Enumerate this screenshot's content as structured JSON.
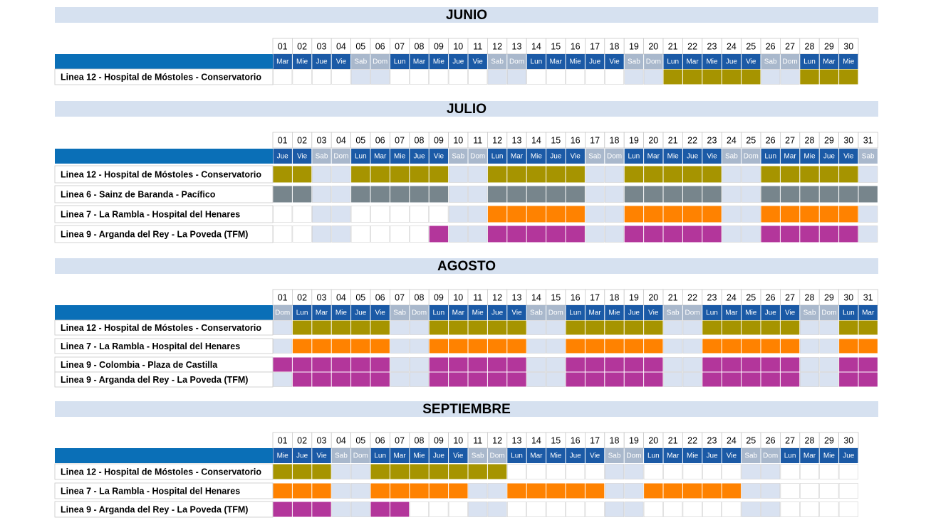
{
  "months": [
    {
      "title": "JUNIO",
      "days": [
        "01",
        "02",
        "03",
        "04",
        "05",
        "06",
        "07",
        "08",
        "09",
        "10",
        "11",
        "12",
        "13",
        "14",
        "15",
        "16",
        "17",
        "18",
        "19",
        "20",
        "21",
        "22",
        "23",
        "24",
        "25",
        "26",
        "27",
        "28",
        "29",
        "30"
      ],
      "weekdays": [
        "Mar",
        "Mie",
        "Jue",
        "Vie",
        "Sab",
        "Dom",
        "Lun",
        "Mar",
        "Mie",
        "Jue",
        "Vie",
        "Sab",
        "Dom",
        "Lun",
        "Mar",
        "Mie",
        "Jue",
        "Vie",
        "Sab",
        "Dom",
        "Lun",
        "Mar",
        "Mie",
        "Jue",
        "Vie",
        "Sab",
        "Dom",
        "Lun",
        "Mar",
        "Mie"
      ],
      "lines": [
        {
          "name": "Linea 12 - Hospital de Móstoles - Conservatorio",
          "color": "#a69400",
          "active": [
            0,
            0,
            0,
            0,
            0,
            0,
            0,
            0,
            0,
            0,
            0,
            0,
            0,
            0,
            0,
            0,
            0,
            0,
            0,
            0,
            1,
            1,
            1,
            1,
            1,
            0,
            0,
            1,
            1,
            1
          ]
        }
      ]
    },
    {
      "title": "JULIO",
      "days": [
        "01",
        "02",
        "03",
        "04",
        "05",
        "06",
        "07",
        "08",
        "09",
        "10",
        "11",
        "12",
        "13",
        "14",
        "15",
        "16",
        "17",
        "18",
        "19",
        "20",
        "21",
        "22",
        "23",
        "24",
        "25",
        "26",
        "27",
        "28",
        "29",
        "30",
        "31"
      ],
      "weekdays": [
        "Jue",
        "Vie",
        "Sab",
        "Dom",
        "Lun",
        "Mar",
        "Mie",
        "Jue",
        "Vie",
        "Sab",
        "Dom",
        "Lun",
        "Mar",
        "Mie",
        "Jue",
        "Vie",
        "Sab",
        "Dom",
        "Lun",
        "Mar",
        "Mie",
        "Jue",
        "Vie",
        "Sab",
        "Dom",
        "Lun",
        "Mar",
        "Mie",
        "Jue",
        "Vie",
        "Sab"
      ],
      "lines": [
        {
          "name": "Linea 12 - Hospital de Móstoles - Conservatorio",
          "color": "#a69400",
          "active": [
            1,
            1,
            0,
            0,
            1,
            1,
            1,
            1,
            1,
            0,
            0,
            1,
            1,
            1,
            1,
            1,
            0,
            0,
            1,
            1,
            1,
            1,
            1,
            0,
            0,
            1,
            1,
            1,
            1,
            1,
            0
          ]
        },
        {
          "name": "Linea 6 - Sainz de Baranda - Pacífico",
          "color": "#77858c",
          "active": [
            1,
            1,
            0,
            0,
            1,
            1,
            1,
            1,
            1,
            0,
            0,
            1,
            1,
            1,
            1,
            1,
            0,
            0,
            1,
            1,
            1,
            1,
            1,
            0,
            0,
            1,
            1,
            1,
            1,
            1,
            1
          ]
        },
        {
          "name": "Linea 7 - La Rambla - Hospital del Henares",
          "color": "#ff8200",
          "active": [
            0,
            0,
            0,
            0,
            0,
            0,
            0,
            0,
            0,
            0,
            0,
            1,
            1,
            1,
            1,
            1,
            0,
            0,
            1,
            1,
            1,
            1,
            1,
            0,
            0,
            1,
            1,
            1,
            1,
            1,
            0
          ]
        },
        {
          "name": "Linea 9 - Arganda del Rey - La Poveda (TFM)",
          "color": "#b3369b",
          "active": [
            0,
            0,
            0,
            0,
            0,
            0,
            0,
            0,
            1,
            0,
            0,
            1,
            1,
            1,
            1,
            1,
            0,
            0,
            1,
            1,
            1,
            1,
            1,
            0,
            0,
            1,
            1,
            1,
            1,
            1,
            0
          ]
        }
      ]
    },
    {
      "title": "AGOSTO",
      "days": [
        "01",
        "02",
        "03",
        "04",
        "05",
        "06",
        "07",
        "08",
        "09",
        "10",
        "11",
        "12",
        "13",
        "14",
        "15",
        "16",
        "17",
        "18",
        "19",
        "20",
        "21",
        "22",
        "23",
        "24",
        "25",
        "26",
        "27",
        "28",
        "29",
        "30",
        "31"
      ],
      "weekdays": [
        "Dom",
        "Lun",
        "Mar",
        "Mie",
        "Jue",
        "Vie",
        "Sab",
        "Dom",
        "Lun",
        "Mar",
        "Mie",
        "Jue",
        "Vie",
        "Sab",
        "Dom",
        "Lun",
        "Mar",
        "Mie",
        "Jue",
        "Vie",
        "Sab",
        "Dom",
        "Lun",
        "Mar",
        "Mie",
        "Jue",
        "Vie",
        "Sab",
        "Dom",
        "Lun",
        "Mar"
      ],
      "lines": [
        {
          "name": "Linea 12 - Hospital de Móstoles - Conservatorio",
          "color": "#a69400",
          "active": [
            0,
            1,
            1,
            1,
            1,
            1,
            0,
            0,
            1,
            1,
            1,
            1,
            1,
            0,
            0,
            1,
            1,
            1,
            1,
            1,
            0,
            0,
            1,
            1,
            1,
            1,
            1,
            0,
            0,
            1,
            1
          ]
        },
        {
          "name": "Linea 7 - La Rambla - Hospital del Henares",
          "color": "#ff8200",
          "active": [
            0,
            1,
            1,
            1,
            1,
            1,
            0,
            0,
            1,
            1,
            1,
            1,
            1,
            0,
            0,
            1,
            1,
            1,
            1,
            1,
            0,
            0,
            1,
            1,
            1,
            1,
            1,
            0,
            0,
            1,
            1
          ]
        },
        {
          "name": "Linea 9 - Colombia - Plaza de Castilla",
          "color": "#b3369b",
          "active": [
            1,
            1,
            1,
            1,
            1,
            1,
            0,
            0,
            1,
            1,
            1,
            1,
            1,
            0,
            0,
            1,
            1,
            1,
            1,
            1,
            0,
            0,
            1,
            1,
            1,
            1,
            1,
            0,
            0,
            1,
            1
          ]
        },
        {
          "name": "Linea 9 - Arganda del Rey - La Poveda (TFM)",
          "color": "#b3369b",
          "active": [
            0,
            1,
            1,
            1,
            1,
            1,
            0,
            0,
            1,
            1,
            1,
            1,
            1,
            0,
            0,
            1,
            1,
            1,
            1,
            1,
            0,
            0,
            1,
            1,
            1,
            1,
            1,
            0,
            0,
            1,
            1
          ]
        }
      ]
    },
    {
      "title": "SEPTIEMBRE",
      "days": [
        "01",
        "02",
        "03",
        "04",
        "05",
        "06",
        "07",
        "08",
        "09",
        "10",
        "11",
        "12",
        "13",
        "14",
        "15",
        "16",
        "17",
        "18",
        "19",
        "20",
        "21",
        "22",
        "23",
        "24",
        "25",
        "26",
        "27",
        "28",
        "29",
        "30"
      ],
      "weekdays": [
        "Mie",
        "Jue",
        "Vie",
        "Sab",
        "Dom",
        "Lun",
        "Mar",
        "Mie",
        "Jue",
        "Vie",
        "Sab",
        "Dom",
        "Lun",
        "Mar",
        "Mie",
        "Jue",
        "Vie",
        "Sab",
        "Dom",
        "Lun",
        "Mar",
        "Mie",
        "Jue",
        "Vie",
        "Sab",
        "Dom",
        "Lun",
        "Mar",
        "Mie",
        "Jue"
      ],
      "lines": [
        {
          "name": "Linea 12 - Hospital de Móstoles - Conservatorio",
          "color": "#a69400",
          "active": [
            1,
            1,
            1,
            0,
            0,
            1,
            1,
            1,
            1,
            1,
            1,
            1,
            0,
            0,
            0,
            0,
            0,
            0,
            0,
            0,
            0,
            0,
            0,
            0,
            0,
            0,
            0,
            0,
            0,
            0
          ]
        },
        {
          "name": "Linea 7 - La Rambla - Hospital del Henares",
          "color": "#ff8200",
          "active": [
            1,
            1,
            1,
            0,
            0,
            1,
            1,
            1,
            1,
            1,
            0,
            0,
            1,
            1,
            1,
            1,
            1,
            0,
            0,
            1,
            1,
            1,
            1,
            1,
            0,
            0,
            0,
            0,
            0,
            0
          ]
        },
        {
          "name": "Linea 9 - Arganda del Rey - La Poveda (TFM)",
          "color": "#b3369b",
          "active": [
            1,
            1,
            1,
            0,
            0,
            1,
            1,
            0,
            0,
            0,
            0,
            0,
            0,
            0,
            0,
            0,
            0,
            0,
            0,
            0,
            0,
            0,
            0,
            0,
            0,
            0,
            0,
            0,
            0,
            0
          ]
        }
      ]
    }
  ]
}
